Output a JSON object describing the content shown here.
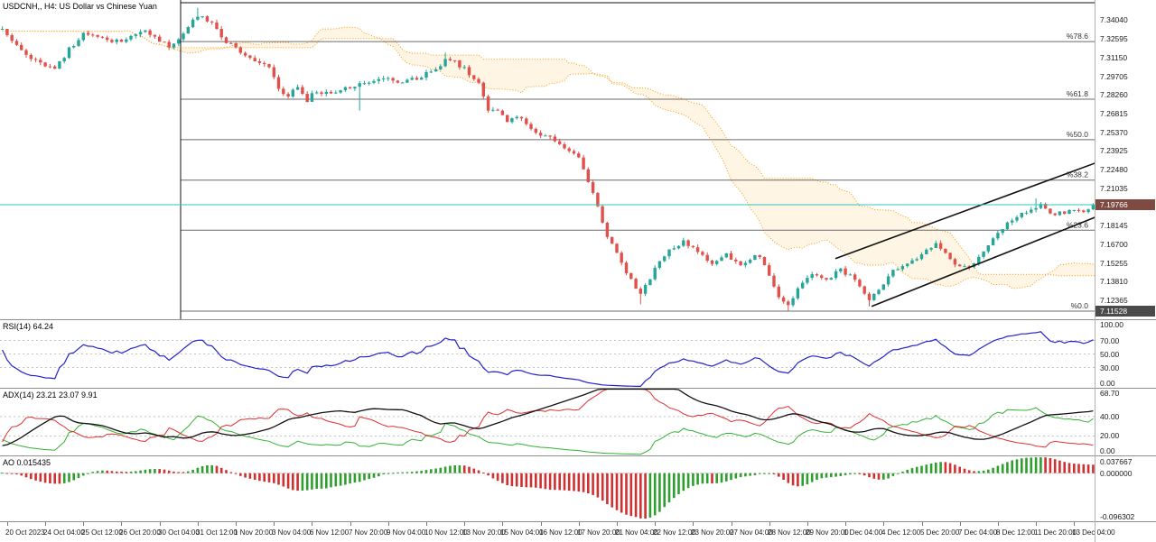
{
  "header": {
    "title": "USDCNH,, H4: US Dollar vs Chinese Yuan"
  },
  "chart_data": {
    "type": "candlestick",
    "symbol": "USDCNH",
    "timeframe": "H4",
    "description": "US Dollar vs Chinese Yuan",
    "bars": 230,
    "ylim": [
      7.109,
      7.3561
    ],
    "seed": 20231213,
    "noise": 0.0035,
    "wick_noise": 0.0022,
    "last_close": 7.19766,
    "price_axis_ticks": [
      "7.34040",
      "7.32595",
      "7.31150",
      "7.29705",
      "7.28260",
      "7.26815",
      "7.25370",
      "7.23925",
      "7.22480",
      "7.21035",
      "7.19590",
      "7.18145",
      "7.16700",
      "7.15255",
      "7.13810",
      "7.12365"
    ],
    "time_labels": [
      "20 Oct 2023",
      "24 Oct 04:00",
      "25 Oct 12:00",
      "26 Oct 20:00",
      "30 Oct 04:00",
      "31 Oct 12:00",
      "1 Nov 20:00",
      "3 Nov 04:00",
      "6 Nov 12:00",
      "7 Nov 20:00",
      "9 Nov 04:00",
      "10 Nov 12:00",
      "13 Nov 20:00",
      "15 Nov 04:00",
      "16 Nov 12:00",
      "17 Nov 20:00",
      "21 Nov 04:00",
      "22 Nov 12:00",
      "23 Nov 20:00",
      "27 Nov 04:00",
      "28 Nov 12:00",
      "29 Nov 20:00",
      "1 Dec 04:00",
      "4 Dec 12:00",
      "5 Dec 20:00",
      "7 Dec 04:00",
      "8 Dec 12:00",
      "11 Dec 20:00",
      "13 Dec 04:00"
    ],
    "first_label_bar": 1,
    "label_every_bars": 8,
    "price_anchors": [
      [
        0,
        7.332
      ],
      [
        3,
        7.32
      ],
      [
        6,
        7.312
      ],
      [
        9,
        7.304
      ],
      [
        11,
        7.302
      ],
      [
        14,
        7.318
      ],
      [
        17,
        7.33
      ],
      [
        20,
        7.327
      ],
      [
        24,
        7.324
      ],
      [
        27,
        7.328
      ],
      [
        30,
        7.331
      ],
      [
        33,
        7.325
      ],
      [
        35,
        7.32
      ],
      [
        37,
        7.326
      ],
      [
        40,
        7.341
      ],
      [
        42,
        7.344
      ],
      [
        44,
        7.338
      ],
      [
        46,
        7.327
      ],
      [
        50,
        7.315
      ],
      [
        53,
        7.31
      ],
      [
        56,
        7.305
      ],
      [
        58,
        7.288
      ],
      [
        60,
        7.282
      ],
      [
        62,
        7.29
      ],
      [
        64,
        7.279
      ],
      [
        66,
        7.286
      ],
      [
        68,
        7.284
      ],
      [
        72,
        7.288
      ],
      [
        76,
        7.292
      ],
      [
        80,
        7.296
      ],
      [
        84,
        7.292
      ],
      [
        88,
        7.297
      ],
      [
        91,
        7.303
      ],
      [
        93,
        7.309
      ],
      [
        95,
        7.308
      ],
      [
        97,
        7.303
      ],
      [
        100,
        7.292
      ],
      [
        102,
        7.27
      ],
      [
        104,
        7.272
      ],
      [
        106,
        7.262
      ],
      [
        108,
        7.266
      ],
      [
        111,
        7.256
      ],
      [
        114,
        7.25
      ],
      [
        117,
        7.246
      ],
      [
        119,
        7.24
      ],
      [
        121,
        7.234
      ],
      [
        123,
        7.215
      ],
      [
        125,
        7.198
      ],
      [
        127,
        7.172
      ],
      [
        129,
        7.16
      ],
      [
        131,
        7.146
      ],
      [
        133,
        7.134
      ],
      [
        134,
        7.128
      ],
      [
        137,
        7.148
      ],
      [
        140,
        7.162
      ],
      [
        143,
        7.17
      ],
      [
        146,
        7.16
      ],
      [
        149,
        7.152
      ],
      [
        152,
        7.16
      ],
      [
        155,
        7.15
      ],
      [
        158,
        7.16
      ],
      [
        160,
        7.152
      ],
      [
        162,
        7.133
      ],
      [
        164,
        7.122
      ],
      [
        165,
        7.12
      ],
      [
        167,
        7.133
      ],
      [
        170,
        7.144
      ],
      [
        173,
        7.138
      ],
      [
        176,
        7.148
      ],
      [
        179,
        7.139
      ],
      [
        182,
        7.124
      ],
      [
        184,
        7.132
      ],
      [
        187,
        7.146
      ],
      [
        190,
        7.152
      ],
      [
        193,
        7.158
      ],
      [
        196,
        7.168
      ],
      [
        199,
        7.156
      ],
      [
        201,
        7.15
      ],
      [
        203,
        7.148
      ],
      [
        206,
        7.162
      ],
      [
        209,
        7.175
      ],
      [
        212,
        7.186
      ],
      [
        215,
        7.193
      ],
      [
        218,
        7.197
      ],
      [
        220,
        7.19
      ],
      [
        222,
        7.191
      ],
      [
        225,
        7.195
      ],
      [
        227,
        7.192
      ],
      [
        229,
        7.19766
      ]
    ],
    "high_overrides": {
      "41": 7.35,
      "93": 7.3155,
      "217": 7.2025
    },
    "low_overrides": {
      "75": 7.2705,
      "134": 7.1205,
      "165": 7.11528,
      "182": 7.119
    },
    "fib_levels": [
      {
        "label": "%78.6",
        "price": 7.3239
      },
      {
        "label": "%61.8",
        "price": 7.2793
      },
      {
        "label": "%50.0",
        "price": 7.248
      },
      {
        "label": "%38.2",
        "price": 7.2167
      },
      {
        "label": "%23.6",
        "price": 7.1779
      },
      {
        "label": "%0.0",
        "price": 7.11528
      }
    ],
    "fib_start_frac": 0.1649,
    "vline_frac": 0.1649,
    "top_line_price": 7.354,
    "channel": {
      "upper": {
        "x1": 0.7626,
        "p1": 7.156,
        "x2": 1.0,
        "p2": 7.23
      },
      "lower": {
        "x1": 0.7956,
        "p1": 7.119,
        "x2": 1.0,
        "p2": 7.188
      }
    },
    "price_tags": {
      "current": "7.19766",
      "current_price": 7.19766,
      "fib_low": "7.11528",
      "fib_low_price": 7.11528
    },
    "indicators": {
      "ichimoku": {
        "tenkan": 9,
        "kijun": 26,
        "senkou": 52,
        "shift": 26
      },
      "rsi": {
        "label": "RSI(14) 64.24",
        "period": 14,
        "range": [
          0,
          100
        ],
        "grid_levels": [
          70,
          50,
          30
        ],
        "axis_ticks": [
          {
            "t": "100.00",
            "v": 100
          },
          {
            "t": "70.00",
            "v": 70
          },
          {
            "t": "50.00",
            "v": 50
          },
          {
            "t": "30.00",
            "v": 30
          },
          {
            "t": "0.00",
            "v": 0
          }
        ]
      },
      "adx": {
        "label": "ADX(14) 23.21 23.07 9.91",
        "period": 14,
        "range": [
          0,
          68.7
        ],
        "grid_levels": [
          40,
          20
        ],
        "axis_ticks": [
          {
            "t": "68.70",
            "v": 68.7
          },
          {
            "t": "40.00",
            "v": 40
          },
          {
            "t": "20.00",
            "v": 20
          },
          {
            "t": "0.00",
            "v": 0
          }
        ]
      },
      "ao": {
        "label": "AO 0.015435",
        "axis_top": "0.037667",
        "axis_zero": "0.000000",
        "axis_bottom": "-0.096302"
      }
    },
    "colors": {
      "bull": "#26a69a",
      "bear": "#e0514b",
      "cloud": "#ff9900",
      "fib": "#6b6b6b",
      "object": "#111111",
      "price_line": "#2fc4c4",
      "price_tag_bg": "#7e4a42",
      "fib_tag_bg": "#4a4a4a",
      "rsi": "#2222cc",
      "adx": "#111111",
      "plus_di": "#33b233",
      "minus_di": "#e03030",
      "ao_up": "#2e9e2e",
      "ao_down": "#d03030",
      "grid": "#c4c4c4"
    }
  }
}
